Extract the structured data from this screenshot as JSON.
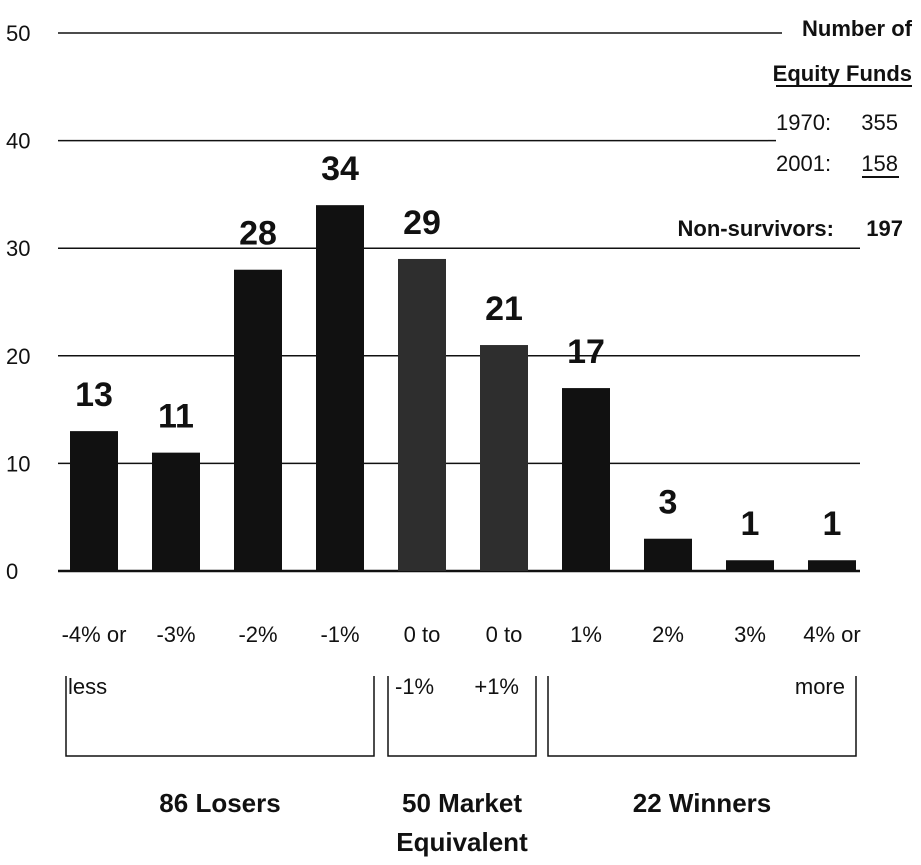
{
  "chart_data": {
    "type": "bar",
    "categories": [
      [
        "-4% or",
        "less"
      ],
      [
        "-3%"
      ],
      [
        "-2%"
      ],
      [
        "-1%"
      ],
      [
        "0 to",
        "-1%"
      ],
      [
        "0 to",
        "+1%"
      ],
      [
        "1%"
      ],
      [
        "2%"
      ],
      [
        "3%"
      ],
      [
        "4% or",
        "more"
      ]
    ],
    "values": [
      13,
      11,
      28,
      34,
      29,
      21,
      17,
      3,
      1,
      1
    ],
    "data_labels": [
      "13",
      "11",
      "28",
      "34",
      "29",
      "21",
      "17",
      "3",
      "1",
      "1"
    ],
    "bar_colors": [
      "#111111",
      "#111111",
      "#111111",
      "#111111",
      "#2e2e2e",
      "#2e2e2e",
      "#111111",
      "#111111",
      "#111111",
      "#111111"
    ],
    "ylim": [
      0,
      50
    ],
    "yticks": [
      0,
      10,
      20,
      30,
      40,
      50
    ],
    "grid": true,
    "groups": [
      {
        "label": [
          "86 Losers"
        ],
        "from": 0,
        "to": 3
      },
      {
        "label": [
          "50 Market",
          "Equivalent"
        ],
        "from": 4,
        "to": 5
      },
      {
        "label": [
          "22 Winners"
        ],
        "from": 6,
        "to": 9
      }
    ],
    "legend": {
      "placement": "top-right",
      "heading_1": "Number of",
      "heading_2": "Equity Funds",
      "rows": [
        {
          "label": "1970:",
          "value": "355"
        },
        {
          "label": "2001:",
          "value": "158"
        }
      ],
      "nonsurvivors_label": "Non-survivors:",
      "nonsurvivors_value": "197"
    }
  }
}
